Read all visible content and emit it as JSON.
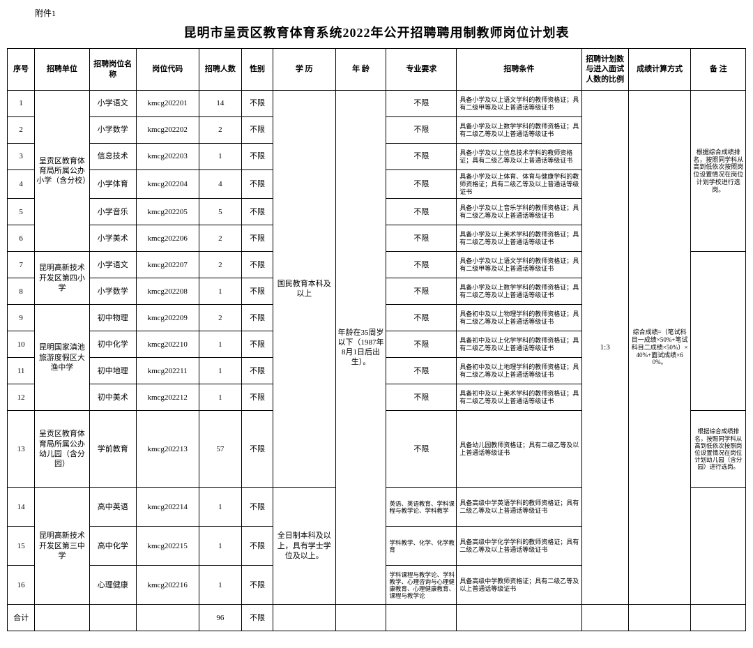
{
  "attachment": "附件1",
  "title": "昆明市呈贡区教育体育系统2022年公开招聘聘用制教师岗位计划表",
  "headers": {
    "seq": "序号",
    "unit": "招聘单位",
    "post": "招聘岗位名称",
    "code": "岗位代码",
    "num": "招聘人数",
    "sex": "性别",
    "edu": "学  历",
    "age": "年  龄",
    "major": "专业要求",
    "cond": "招聘条件",
    "ratio": "招聘计划数与进入面试人数的比例",
    "score": "成绩计算方式",
    "note": "备  注"
  },
  "units": {
    "u1": "呈贡区教育体育局所属公办小学（含分校）",
    "u2": "昆明高新技术开发区第四小学",
    "u3": "昆明国家滇池旅游度假区大渔中学",
    "u4": "呈贡区教育体育局所属公办幼儿园（含分园）",
    "u5": "昆明高新技术开发区第三中学"
  },
  "edu": {
    "e1": "国民教育本科及以上",
    "e2": "全日制本科及以上，具有学士学位及以上。"
  },
  "age_text": "年龄在35周岁以下（1987年8月1日后出生）。",
  "ratio_text": "1:3",
  "score_text": "综合成绩=（笔试科目一成绩×50%+笔试科目二成绩×50%）×40%+面试成绩×60%。",
  "notes": {
    "n1": "根据综合成绩排名，按照同学科从高到低依次按照岗位设置情况在岗位计划学校进行选岗。",
    "n2": "根据综合成绩排名，按照同学科从高到低依次按照岗位设置情况在岗位计划幼儿园（含分园）进行选岗。"
  },
  "rows": {
    "r1": {
      "seq": "1",
      "post": "小学语文",
      "code": "kmcg202201",
      "num": "14",
      "sex": "不限",
      "major": "不限",
      "cond": "具备小学及以上语文学科的教师资格证；具有二级甲等及以上普通话等级证书"
    },
    "r2": {
      "seq": "2",
      "post": "小学数学",
      "code": "kmcg202202",
      "num": "2",
      "sex": "不限",
      "major": "不限",
      "cond": "具备小学及以上数学学科的教师资格证；具有二级乙等及以上普通话等级证书"
    },
    "r3": {
      "seq": "3",
      "post": "信息技术",
      "code": "kmcg202203",
      "num": "1",
      "sex": "不限",
      "major": "不限",
      "cond": "具备小学及以上信息技术学科的教师资格证；具有二级乙等及以上普通话等级证书"
    },
    "r4": {
      "seq": "4",
      "post": "小学体育",
      "code": "kmcg202204",
      "num": "4",
      "sex": "不限",
      "major": "不限",
      "cond": "具备小学及以上体育、体育与健康学科的教师资格证；具有二级乙等及以上普通话等级证书"
    },
    "r5": {
      "seq": "5",
      "post": "小学音乐",
      "code": "kmcg202205",
      "num": "5",
      "sex": "不限",
      "major": "不限",
      "cond": "具备小学及以上音乐学科的教师资格证；具有二级乙等及以上普通话等级证书"
    },
    "r6": {
      "seq": "6",
      "post": "小学美术",
      "code": "kmcg202206",
      "num": "2",
      "sex": "不限",
      "major": "不限",
      "cond": "具备小学及以上美术学科的教师资格证；具有二级乙等及以上普通话等级证书"
    },
    "r7": {
      "seq": "7",
      "post": "小学语文",
      "code": "kmcg202207",
      "num": "2",
      "sex": "不限",
      "major": "不限",
      "cond": "具备小学及以上语文学科的教师资格证；具有二级甲等及以上普通话等级证书"
    },
    "r8": {
      "seq": "8",
      "post": "小学数学",
      "code": "kmcg202208",
      "num": "1",
      "sex": "不限",
      "major": "不限",
      "cond": "具备小学及以上数学学科的教师资格证；具有二级乙等及以上普通话等级证书"
    },
    "r9": {
      "seq": "9",
      "post": "初中物理",
      "code": "kmcg202209",
      "num": "2",
      "sex": "不限",
      "major": "不限",
      "cond": "具备初中及以上物理学科的教师资格证；具有二级乙等及以上普通话等级证书"
    },
    "r10": {
      "seq": "10",
      "post": "初中化学",
      "code": "kmcg202210",
      "num": "1",
      "sex": "不限",
      "major": "不限",
      "cond": "具备初中及以上化学学科的教师资格证；具有二级乙等及以上普通话等级证书"
    },
    "r11": {
      "seq": "11",
      "post": "初中地理",
      "code": "kmcg202211",
      "num": "1",
      "sex": "不限",
      "major": "不限",
      "cond": "具备初中及以上地理学科的教师资格证；具有二级乙等及以上普通话等级证书"
    },
    "r12": {
      "seq": "12",
      "post": "初中美术",
      "code": "kmcg202212",
      "num": "1",
      "sex": "不限",
      "major": "不限",
      "cond": "具备初中及以上美术学科的教师资格证；具有二级乙等及以上普通话等级证书"
    },
    "r13": {
      "seq": "13",
      "post": "学前教育",
      "code": "kmcg202213",
      "num": "57",
      "sex": "不限",
      "major": "不限",
      "cond": "具备幼儿园教师资格证；具有二级乙等及以上普通话等级证书"
    },
    "r14": {
      "seq": "14",
      "post": "高中英语",
      "code": "kmcg202214",
      "num": "1",
      "sex": "不限",
      "major": "英语、英语教育、学科课程与教学论、学科教学",
      "cond": "具备高级中学英语学科的教师资格证；具有二级乙等及以上普通话等级证书"
    },
    "r15": {
      "seq": "15",
      "post": "高中化学",
      "code": "kmcg202215",
      "num": "1",
      "sex": "不限",
      "major": "学科教学、化学、化学教育",
      "cond": "具备高级中学化学学科的教师资格证；具有二级乙等及以上普通话等级证书"
    },
    "r16": {
      "seq": "16",
      "post": "心理健康",
      "code": "kmcg202216",
      "num": "1",
      "sex": "不限",
      "major": "学科课程与教学论、学科教学、心理咨询与心理健康教育、心理健康教育、课程与教学论",
      "cond": "具备高级中学教师资格证；具有二级乙等及以上普通话等级证书"
    }
  },
  "total": {
    "label": "合计",
    "num": "96",
    "sex": "不限"
  }
}
